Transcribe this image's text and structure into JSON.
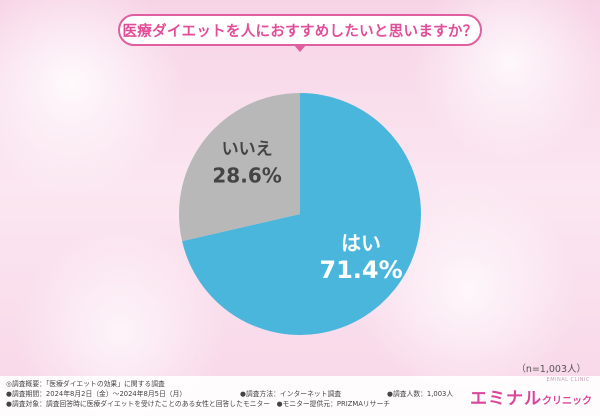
{
  "title": "医療ダイエットを人におすすめしたいと思いますか？",
  "chart_data": {
    "type": "pie",
    "slices": [
      {
        "label": "はい",
        "value": 71.4,
        "value_text": "71.4%",
        "color": "#4bb6dc"
      },
      {
        "label": "いいえ",
        "value": 28.6,
        "value_text": "28.6%",
        "color": "#b8b8b8"
      }
    ],
    "start": "12 o'clock",
    "direction": "clockwise"
  },
  "sample_size": "（n=1,003人）",
  "footer": {
    "overview": "◎調査概要：「医療ダイエットの効果」に関する調査",
    "period": "●調査期間：2024年8月2日（金）～2024年8月5日（月）",
    "method": "●調査方法：インターネット調査",
    "count": "●調査人数：1,003人",
    "target": "●調査対象：調査回答時に医療ダイエットを受けたことのある女性と回答したモニター",
    "provider": "●モニター提供元：PRIZMAリサーチ"
  },
  "brand": {
    "main": "エミナル",
    "sub": "クリニック",
    "tiny": "EMINAL CLINIC"
  }
}
